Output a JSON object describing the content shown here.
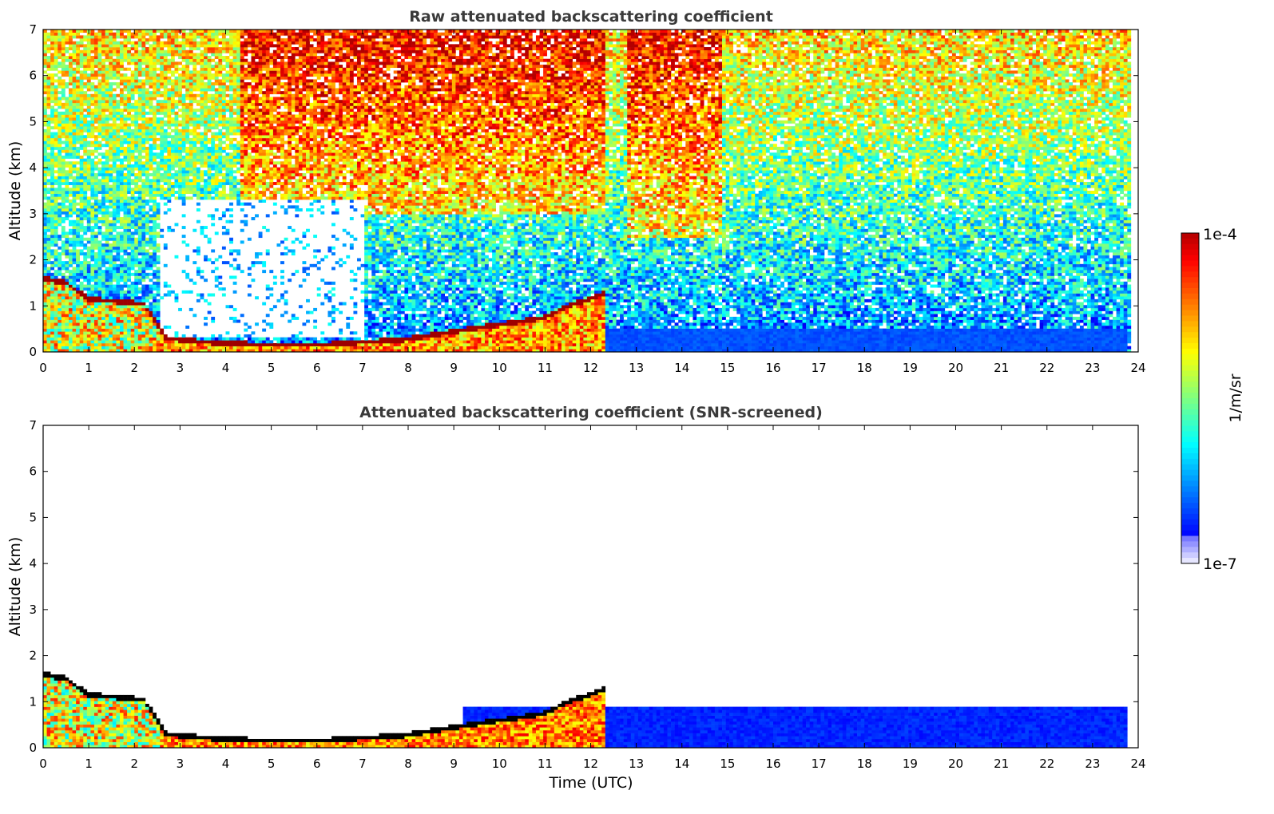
{
  "chart_data": [
    {
      "type": "heatmap",
      "title": "Raw attenuated backscattering coefficient",
      "xlabel": "",
      "ylabel": "Altitude (km)",
      "xlim": [
        0,
        24
      ],
      "ylim": [
        0,
        7
      ],
      "x_ticks": [
        "0",
        "1",
        "2",
        "3",
        "4",
        "5",
        "6",
        "7",
        "8",
        "9",
        "10",
        "11",
        "12",
        "13",
        "14",
        "15",
        "16",
        "17",
        "18",
        "19",
        "20",
        "21",
        "22",
        "23",
        "24"
      ],
      "y_ticks": [
        "0",
        "1",
        "2",
        "3",
        "4",
        "5",
        "6",
        "7"
      ],
      "grid": false,
      "data_end_time": 23.8,
      "colorscale": "jet",
      "features": [
        {
          "kind": "noise_background",
          "t0": 0,
          "t1": 23.8,
          "level": "mid-high"
        },
        {
          "kind": "high_noise",
          "t0": 4.3,
          "t1": 12.3,
          "alt_min": 3
        },
        {
          "kind": "high_noise",
          "t0": 12.8,
          "t1": 14.9,
          "alt_min": 2.5
        },
        {
          "kind": "clear_gap",
          "t0": 2.6,
          "t1": 7.0,
          "alt0": 0.3,
          "alt1": 3.3
        },
        {
          "kind": "boundary_layer",
          "points": [
            [
              0,
              1.6
            ],
            [
              0.5,
              1.5
            ],
            [
              1.0,
              1.15
            ],
            [
              2.2,
              1.05
            ],
            [
              2.7,
              0.3
            ],
            [
              4.0,
              0.18
            ],
            [
              6.0,
              0.15
            ],
            [
              8.0,
              0.28
            ],
            [
              9.0,
              0.45
            ],
            [
              10.0,
              0.6
            ],
            [
              11.0,
              0.75
            ],
            [
              11.5,
              1.0
            ],
            [
              12.0,
              1.15
            ],
            [
              12.3,
              1.3
            ]
          ]
        },
        {
          "kind": "low_signal_layer",
          "t0": 9.2,
          "t1": 23.8,
          "alt_top": 0.5
        }
      ]
    },
    {
      "type": "heatmap",
      "title": "Attenuated backscattering coefficient (SNR-screened)",
      "xlabel": "Time (UTC)",
      "ylabel": "Altitude (km)",
      "xlim": [
        0,
        24
      ],
      "ylim": [
        0,
        7
      ],
      "x_ticks": [
        "0",
        "1",
        "2",
        "3",
        "4",
        "5",
        "6",
        "7",
        "8",
        "9",
        "10",
        "11",
        "12",
        "13",
        "14",
        "15",
        "16",
        "17",
        "18",
        "19",
        "20",
        "21",
        "22",
        "23",
        "24"
      ],
      "y_ticks": [
        "0",
        "1",
        "2",
        "3",
        "4",
        "5",
        "6",
        "7"
      ],
      "grid": false,
      "colorscale": "jet",
      "features": [
        {
          "kind": "boundary_layer",
          "points": [
            [
              0,
              1.6
            ],
            [
              0.5,
              1.5
            ],
            [
              1.0,
              1.15
            ],
            [
              2.2,
              1.05
            ],
            [
              2.7,
              0.3
            ],
            [
              4.0,
              0.18
            ],
            [
              6.0,
              0.15
            ],
            [
              8.0,
              0.28
            ],
            [
              9.0,
              0.45
            ],
            [
              10.0,
              0.6
            ],
            [
              11.0,
              0.75
            ],
            [
              11.5,
              1.0
            ],
            [
              12.0,
              1.15
            ],
            [
              12.3,
              1.3
            ]
          ]
        },
        {
          "kind": "low_signal_layer",
          "t0": 9.2,
          "t1": 23.8,
          "alt_top": 0.9
        }
      ]
    }
  ],
  "colorbar": {
    "label": "1/m/sr",
    "max_label": "1e-4",
    "min_label": "1e-7",
    "colors": [
      "#00007f",
      "#0000ff",
      "#007fff",
      "#00ffff",
      "#7fff7f",
      "#ffff00",
      "#ff7f00",
      "#ff0000",
      "#7f0000"
    ]
  }
}
